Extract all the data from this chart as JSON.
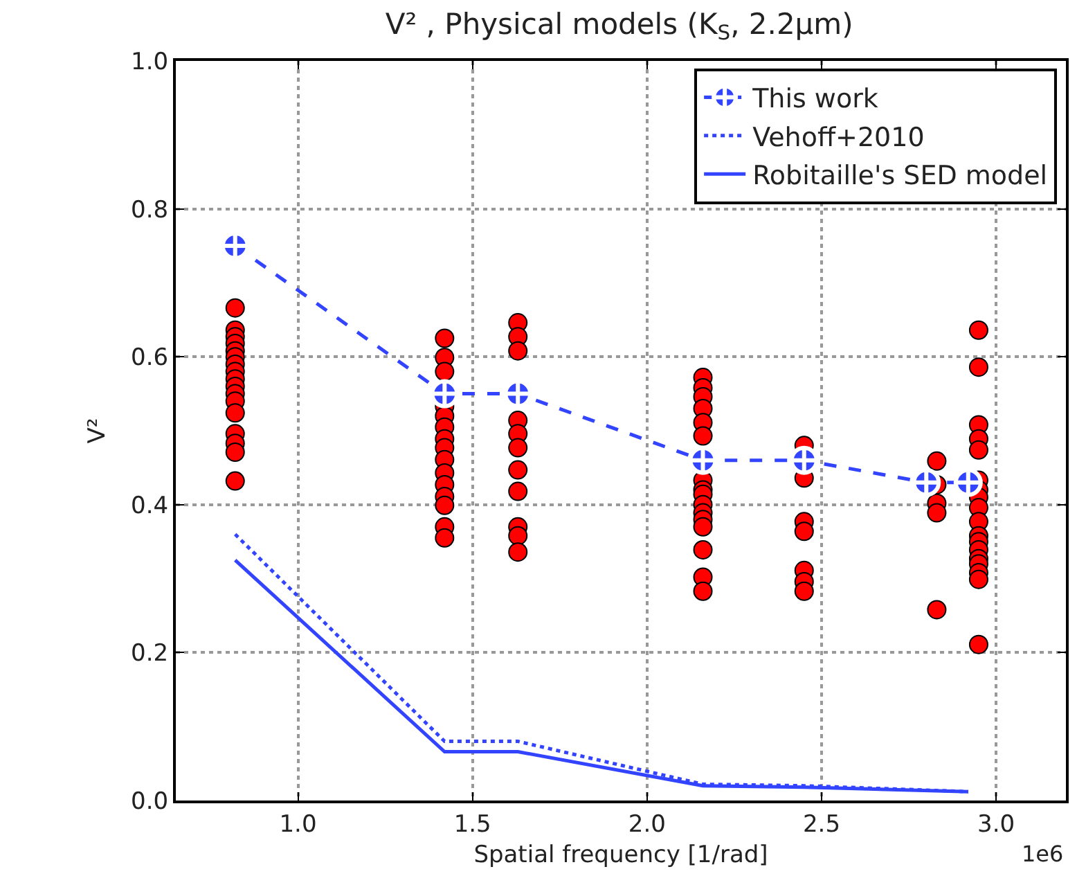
{
  "chart_data": {
    "type": "scatter",
    "title": "V² , Physical models (K$_{S}$, 2.2μm)",
    "xlabel": "Spatial frequency [1/rad]",
    "ylabel": "V²",
    "annotations": [
      "1e6"
    ],
    "xlim": [
      0.65,
      3.2
    ],
    "xticks": [
      {
        "value": 1,
        "label": "1.0"
      },
      {
        "value": 1.5,
        "label": "1.5"
      },
      {
        "value": 2,
        "label": "2.0"
      },
      {
        "value": 2.5,
        "label": "2.5"
      },
      {
        "value": 3,
        "label": "3.0"
      }
    ],
    "ylim": [
      0,
      1
    ],
    "yticks": [
      {
        "value": 0,
        "label": "0.0"
      },
      {
        "value": 0.2,
        "label": "0.2"
      },
      {
        "value": 0.4,
        "label": "0.4"
      },
      {
        "value": 0.6,
        "label": "0.6"
      },
      {
        "value": 0.8,
        "label": "0.8"
      },
      {
        "value": 1,
        "label": "1.0"
      }
    ],
    "grid": true,
    "legend": "top right",
    "series": [
      {
        "marker": "circle",
        "color": "#ff0000",
        "x": [
          0.82,
          0.82,
          0.82,
          0.82,
          0.82,
          0.82,
          0.82,
          0.82,
          0.82,
          0.82,
          0.82,
          0.82,
          0.82,
          0.82,
          0.82,
          0.82,
          0.82,
          1.42,
          1.42,
          1.42,
          1.42,
          1.42,
          1.42,
          1.42,
          1.42,
          1.42,
          1.42,
          1.42,
          1.42,
          1.42,
          1.42,
          1.42,
          1.63,
          1.63,
          1.63,
          1.63,
          1.63,
          1.63,
          1.63,
          1.63,
          1.63,
          1.63,
          1.63,
          2.16,
          2.16,
          2.16,
          2.16,
          2.16,
          2.16,
          2.16,
          2.16,
          2.16,
          2.16,
          2.16,
          2.16,
          2.16,
          2.16,
          2.16,
          2.16,
          2.45,
          2.45,
          2.45,
          2.45,
          2.45,
          2.45,
          2.45,
          2.83,
          2.83,
          2.83,
          2.83,
          2.83,
          2.95,
          2.95,
          2.95,
          2.95,
          2.95,
          2.95,
          2.95,
          2.95,
          2.95,
          2.95,
          2.95,
          2.95,
          2.95,
          2.95,
          2.95,
          2.95,
          2.95,
          2.95
        ],
        "values": [
          0.666,
          0.636,
          0.627,
          0.618,
          0.608,
          0.6,
          0.59,
          0.58,
          0.57,
          0.56,
          0.55,
          0.54,
          0.524,
          0.496,
          0.483,
          0.471,
          0.432,
          0.625,
          0.599,
          0.58,
          0.533,
          0.52,
          0.505,
          0.489,
          0.477,
          0.461,
          0.443,
          0.427,
          0.411,
          0.399,
          0.37,
          0.355,
          0.646,
          0.627,
          0.608,
          0.514,
          0.496,
          0.477,
          0.447,
          0.418,
          0.37,
          0.358,
          0.336,
          0.572,
          0.558,
          0.546,
          0.53,
          0.511,
          0.493,
          0.433,
          0.42,
          0.414,
          0.4,
          0.389,
          0.38,
          0.37,
          0.339,
          0.302,
          0.283,
          0.48,
          0.436,
          0.377,
          0.364,
          0.311,
          0.296,
          0.283,
          0.459,
          0.427,
          0.402,
          0.389,
          0.258,
          0.636,
          0.586,
          0.508,
          0.489,
          0.474,
          0.433,
          0.42,
          0.41,
          0.396,
          0.377,
          0.358,
          0.35,
          0.339,
          0.327,
          0.32,
          0.308,
          0.299,
          0.211
        ]
      },
      {
        "type": "line",
        "name": "This work",
        "line_style": "dashed",
        "marker": "cross",
        "color": "#3344ff",
        "x": [
          0.82,
          1.42,
          1.63,
          2.16,
          2.45,
          2.8,
          2.92
        ],
        "values": [
          0.75,
          0.55,
          0.55,
          0.46,
          0.46,
          0.43,
          0.43
        ]
      },
      {
        "type": "line",
        "name": "Vehoff+2010",
        "line_style": "dotted",
        "marker": "none",
        "color": "#3344ff",
        "x": [
          0.82,
          1.42,
          1.63,
          2.16,
          2.45,
          2.92
        ],
        "values": [
          0.36,
          0.08,
          0.08,
          0.022,
          0.02,
          0.012
        ]
      },
      {
        "type": "line",
        "name": "Robitaille's SED model",
        "line_style": "solid",
        "marker": "none",
        "color": "#3344ff",
        "x": [
          0.82,
          1.42,
          1.63,
          2.16,
          2.45,
          2.92
        ],
        "values": [
          0.325,
          0.066,
          0.066,
          0.02,
          0.018,
          0.012
        ]
      }
    ]
  }
}
